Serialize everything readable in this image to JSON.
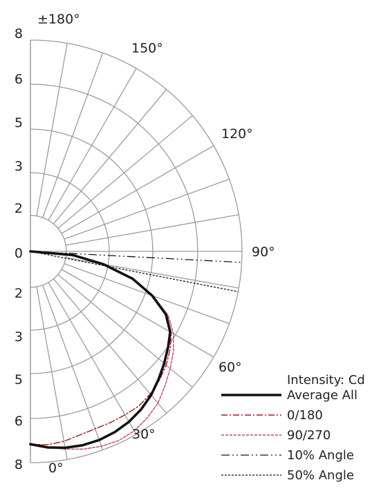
{
  "chart_data": {
    "type": "line",
    "subtype": "polar-half",
    "radial_axis": {
      "upper_ticks": [
        "8",
        "6",
        "5",
        "3",
        "2",
        "0"
      ],
      "lower_ticks": [
        "2",
        "3",
        "5",
        "6",
        "8"
      ],
      "unit": "Cd"
    },
    "angle_labels": [
      "0°",
      "30°",
      "60°",
      "90°",
      "120°",
      "150°",
      "±180°"
    ],
    "angle_grid_step_deg": 10,
    "legend_title": "Intensity: Cd",
    "colors": {
      "grid": "#9b9b9b",
      "average_all": "#111111",
      "series_0_180": "#a01818",
      "series_90_270": "#c8407a",
      "angle10": "#111111",
      "angle50": "#111111"
    },
    "series": [
      {
        "name": "Average All",
        "points": [
          [
            0,
            7.3
          ],
          [
            5,
            7.45
          ],
          [
            10,
            7.55
          ],
          [
            15,
            7.6
          ],
          [
            20,
            7.6
          ],
          [
            25,
            7.55
          ],
          [
            30,
            7.45
          ],
          [
            35,
            7.3
          ],
          [
            40,
            7.1
          ],
          [
            45,
            6.85
          ],
          [
            50,
            6.6
          ],
          [
            55,
            6.35
          ],
          [
            60,
            6.1
          ],
          [
            65,
            5.65
          ],
          [
            70,
            4.9
          ],
          [
            75,
            4.0
          ],
          [
            80,
            2.8
          ],
          [
            85,
            1.6
          ],
          [
            90,
            0.0
          ]
        ]
      },
      {
        "name": "0/180",
        "points": [
          [
            0,
            7.3
          ],
          [
            5,
            7.35
          ],
          [
            10,
            7.3
          ],
          [
            15,
            7.2
          ],
          [
            20,
            7.15
          ],
          [
            25,
            7.15
          ],
          [
            30,
            7.15
          ],
          [
            35,
            7.15
          ],
          [
            40,
            7.05
          ],
          [
            45,
            6.9
          ],
          [
            50,
            6.7
          ],
          [
            55,
            6.45
          ],
          [
            60,
            6.15
          ],
          [
            65,
            5.7
          ],
          [
            70,
            4.9
          ],
          [
            75,
            4.0
          ],
          [
            80,
            2.8
          ],
          [
            85,
            1.6
          ],
          [
            90,
            0.0
          ]
        ]
      },
      {
        "name": "90/270",
        "points": [
          [
            0,
            7.3
          ],
          [
            5,
            7.45
          ],
          [
            10,
            7.6
          ],
          [
            15,
            7.75
          ],
          [
            20,
            7.85
          ],
          [
            25,
            7.9
          ],
          [
            30,
            7.85
          ],
          [
            35,
            7.7
          ],
          [
            40,
            7.5
          ],
          [
            45,
            7.2
          ],
          [
            50,
            6.9
          ],
          [
            55,
            6.6
          ],
          [
            60,
            6.25
          ],
          [
            65,
            5.75
          ],
          [
            70,
            4.95
          ],
          [
            75,
            4.05
          ],
          [
            80,
            2.85
          ],
          [
            85,
            1.6
          ],
          [
            90,
            0.0
          ]
        ]
      }
    ],
    "angle_lines": [
      {
        "name": "10% Angle",
        "angle_deg": 87
      },
      {
        "name": "50% Angle",
        "angle_deg": 79
      }
    ]
  }
}
